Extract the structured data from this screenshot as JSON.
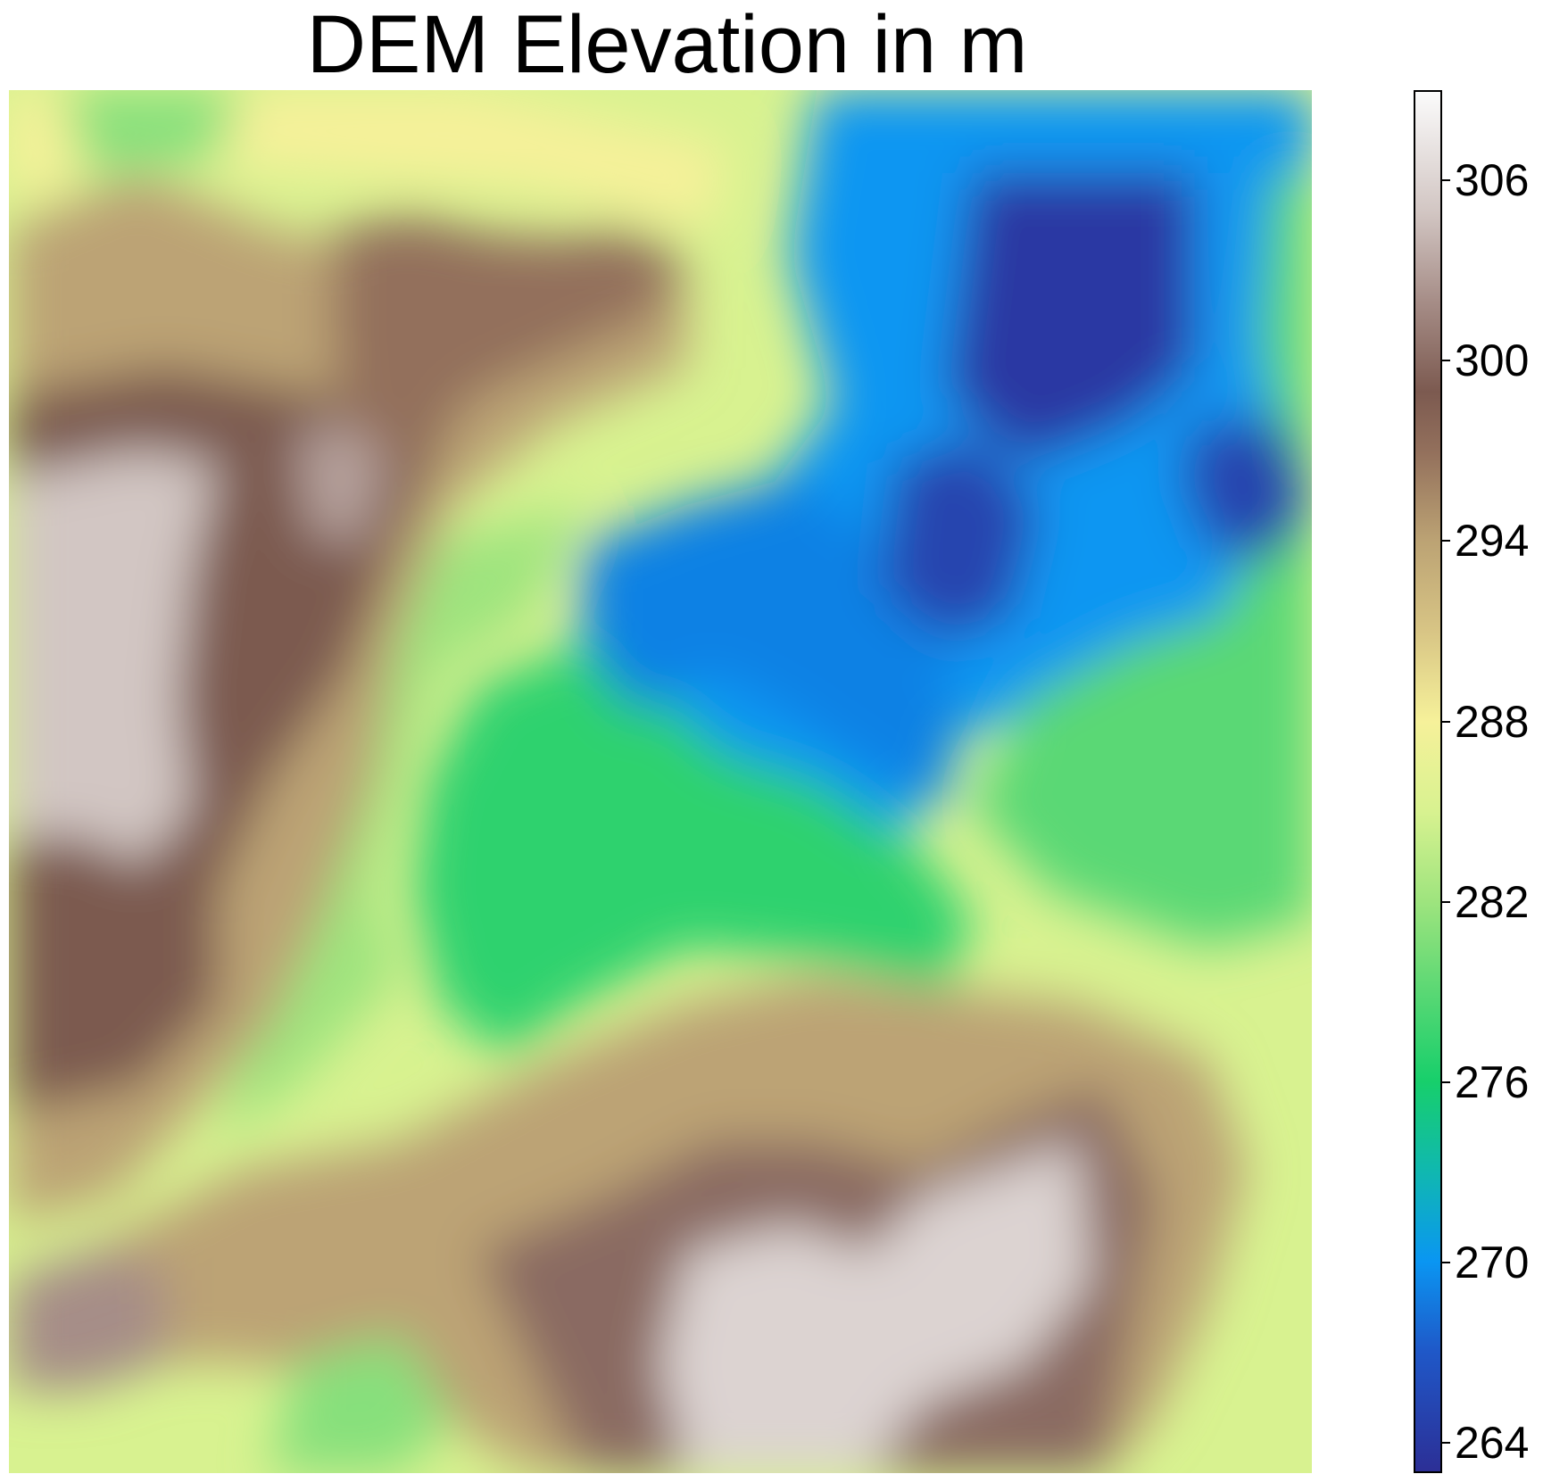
{
  "title": "DEM Elevation in m",
  "colorbar": {
    "min": 263,
    "max": 309,
    "ticks": [
      "264",
      "270",
      "276",
      "282",
      "288",
      "294",
      "300",
      "306"
    ],
    "stops": [
      {
        "value": 263,
        "color": "#2c2f96"
      },
      {
        "value": 267,
        "color": "#1f58c8"
      },
      {
        "value": 270,
        "color": "#0a96f2"
      },
      {
        "value": 273,
        "color": "#10b8b0"
      },
      {
        "value": 276,
        "color": "#17cf6b"
      },
      {
        "value": 279,
        "color": "#5ad874"
      },
      {
        "value": 282,
        "color": "#9ee47e"
      },
      {
        "value": 285,
        "color": "#d8f290"
      },
      {
        "value": 288,
        "color": "#f6f19a"
      },
      {
        "value": 291,
        "color": "#d8c585"
      },
      {
        "value": 294,
        "color": "#bca374"
      },
      {
        "value": 297,
        "color": "#93705c"
      },
      {
        "value": 299,
        "color": "#7c5a50"
      },
      {
        "value": 302,
        "color": "#a68d87"
      },
      {
        "value": 305,
        "color": "#d2c6c3"
      },
      {
        "value": 309,
        "color": "#fbfbfb"
      }
    ]
  },
  "map": {
    "base_elevation": 285,
    "features": [
      {
        "name": "northeast-basin",
        "elevation": 270,
        "points": [
          [
            0.66,
            0.0
          ],
          [
            0.87,
            0.0
          ],
          [
            1.0,
            0.0
          ],
          [
            1.0,
            0.42
          ],
          [
            0.95,
            0.45
          ],
          [
            0.86,
            0.42
          ],
          [
            0.78,
            0.45
          ],
          [
            0.72,
            0.47
          ],
          [
            0.68,
            0.55
          ],
          [
            0.62,
            0.6
          ],
          [
            0.56,
            0.58
          ],
          [
            0.46,
            0.52
          ],
          [
            0.45,
            0.4
          ],
          [
            0.55,
            0.33
          ],
          [
            0.63,
            0.23
          ],
          [
            0.65,
            0.1
          ]
        ]
      },
      {
        "name": "east-green-slope",
        "elevation": 279,
        "points": [
          [
            0.97,
            0.06
          ],
          [
            1.0,
            0.06
          ],
          [
            1.0,
            0.6
          ],
          [
            0.92,
            0.62
          ],
          [
            0.86,
            0.6
          ],
          [
            0.8,
            0.58
          ],
          [
            0.74,
            0.52
          ],
          [
            0.78,
            0.44
          ],
          [
            0.86,
            0.4
          ],
          [
            0.93,
            0.38
          ],
          [
            0.98,
            0.28
          ],
          [
            0.96,
            0.18
          ]
        ]
      },
      {
        "name": "central-valley",
        "elevation": 277,
        "points": [
          [
            0.36,
            0.43
          ],
          [
            0.44,
            0.4
          ],
          [
            0.5,
            0.44
          ],
          [
            0.55,
            0.48
          ],
          [
            0.62,
            0.5
          ],
          [
            0.7,
            0.55
          ],
          [
            0.74,
            0.6
          ],
          [
            0.72,
            0.65
          ],
          [
            0.62,
            0.63
          ],
          [
            0.52,
            0.62
          ],
          [
            0.44,
            0.66
          ],
          [
            0.38,
            0.7
          ],
          [
            0.33,
            0.66
          ],
          [
            0.31,
            0.58
          ],
          [
            0.32,
            0.5
          ]
        ]
      },
      {
        "name": "valley-green-fringe",
        "elevation": 282,
        "points": [
          [
            0.28,
            0.34
          ],
          [
            0.36,
            0.32
          ],
          [
            0.44,
            0.3
          ],
          [
            0.4,
            0.38
          ],
          [
            0.33,
            0.42
          ],
          [
            0.3,
            0.5
          ],
          [
            0.28,
            0.58
          ],
          [
            0.3,
            0.64
          ],
          [
            0.22,
            0.72
          ],
          [
            0.16,
            0.76
          ],
          [
            0.18,
            0.7
          ],
          [
            0.22,
            0.62
          ],
          [
            0.25,
            0.5
          ],
          [
            0.27,
            0.42
          ]
        ]
      },
      {
        "name": "central-blue-depression",
        "elevation": 269,
        "points": [
          [
            0.44,
            0.33
          ],
          [
            0.52,
            0.3
          ],
          [
            0.6,
            0.28
          ],
          [
            0.66,
            0.32
          ],
          [
            0.7,
            0.38
          ],
          [
            0.73,
            0.45
          ],
          [
            0.72,
            0.52
          ],
          [
            0.66,
            0.49
          ],
          [
            0.6,
            0.45
          ],
          [
            0.54,
            0.42
          ],
          [
            0.48,
            0.45
          ],
          [
            0.44,
            0.4
          ]
        ]
      },
      {
        "name": "north-deep-basin",
        "elevation": 264,
        "points": [
          [
            0.74,
            0.06
          ],
          [
            0.91,
            0.06
          ],
          [
            0.91,
            0.2
          ],
          [
            0.86,
            0.24
          ],
          [
            0.78,
            0.27
          ],
          [
            0.72,
            0.22
          ],
          [
            0.73,
            0.14
          ]
        ]
      },
      {
        "name": "central-deep-pit",
        "elevation": 265,
        "points": [
          [
            0.68,
            0.27
          ],
          [
            0.74,
            0.25
          ],
          [
            0.79,
            0.3
          ],
          [
            0.77,
            0.38
          ],
          [
            0.72,
            0.4
          ],
          [
            0.67,
            0.36
          ]
        ]
      },
      {
        "name": "east-deep-pit",
        "elevation": 265,
        "points": [
          [
            0.91,
            0.24
          ],
          [
            0.98,
            0.24
          ],
          [
            1.0,
            0.3
          ],
          [
            0.97,
            0.34
          ],
          [
            0.92,
            0.33
          ],
          [
            0.9,
            0.28
          ]
        ]
      },
      {
        "name": "north-channel",
        "elevation": 270,
        "points": [
          [
            0.62,
            0.0
          ],
          [
            0.72,
            0.0
          ],
          [
            0.73,
            0.08
          ],
          [
            0.68,
            0.18
          ],
          [
            0.63,
            0.22
          ],
          [
            0.6,
            0.12
          ]
        ]
      },
      {
        "name": "western-plateau",
        "elevation": 294,
        "points": [
          [
            0.0,
            0.1
          ],
          [
            0.1,
            0.06
          ],
          [
            0.2,
            0.1
          ],
          [
            0.3,
            0.12
          ],
          [
            0.4,
            0.1
          ],
          [
            0.52,
            0.14
          ],
          [
            0.52,
            0.2
          ],
          [
            0.42,
            0.24
          ],
          [
            0.34,
            0.3
          ],
          [
            0.3,
            0.4
          ],
          [
            0.28,
            0.5
          ],
          [
            0.24,
            0.6
          ],
          [
            0.2,
            0.68
          ],
          [
            0.14,
            0.74
          ],
          [
            0.08,
            0.8
          ],
          [
            0.0,
            0.82
          ]
        ]
      },
      {
        "name": "west-highland",
        "elevation": 299,
        "points": [
          [
            0.0,
            0.22
          ],
          [
            0.12,
            0.2
          ],
          [
            0.24,
            0.22
          ],
          [
            0.34,
            0.24
          ],
          [
            0.3,
            0.32
          ],
          [
            0.26,
            0.42
          ],
          [
            0.2,
            0.5
          ],
          [
            0.16,
            0.58
          ],
          [
            0.16,
            0.66
          ],
          [
            0.1,
            0.72
          ],
          [
            0.0,
            0.74
          ]
        ]
      },
      {
        "name": "west-summit",
        "elevation": 305,
        "points": [
          [
            0.0,
            0.28
          ],
          [
            0.1,
            0.26
          ],
          [
            0.16,
            0.27
          ],
          [
            0.14,
            0.35
          ],
          [
            0.13,
            0.44
          ],
          [
            0.14,
            0.52
          ],
          [
            0.1,
            0.56
          ],
          [
            0.06,
            0.54
          ],
          [
            0.0,
            0.54
          ]
        ]
      },
      {
        "name": "northwest-ridge",
        "elevation": 297,
        "points": [
          [
            0.25,
            0.1
          ],
          [
            0.31,
            0.09
          ],
          [
            0.4,
            0.11
          ],
          [
            0.47,
            0.1
          ],
          [
            0.52,
            0.12
          ],
          [
            0.5,
            0.16
          ],
          [
            0.43,
            0.19
          ],
          [
            0.36,
            0.22
          ],
          [
            0.3,
            0.28
          ],
          [
            0.26,
            0.26
          ],
          [
            0.25,
            0.18
          ]
        ]
      },
      {
        "name": "upper-west-pit",
        "elevation": 303,
        "points": [
          [
            0.22,
            0.25
          ],
          [
            0.26,
            0.24
          ],
          [
            0.29,
            0.27
          ],
          [
            0.27,
            0.33
          ],
          [
            0.23,
            0.32
          ]
        ]
      },
      {
        "name": "northwest-yellow-band",
        "elevation": 288,
        "points": [
          [
            0.0,
            0.0
          ],
          [
            0.2,
            0.0
          ],
          [
            0.35,
            0.0
          ],
          [
            0.45,
            0.02
          ],
          [
            0.55,
            0.04
          ],
          [
            0.54,
            0.1
          ],
          [
            0.4,
            0.07
          ],
          [
            0.25,
            0.06
          ],
          [
            0.1,
            0.05
          ],
          [
            0.0,
            0.08
          ]
        ]
      },
      {
        "name": "north-green-strip",
        "elevation": 281,
        "points": [
          [
            0.04,
            0.0
          ],
          [
            0.18,
            0.0
          ],
          [
            0.16,
            0.05
          ],
          [
            0.06,
            0.06
          ]
        ]
      },
      {
        "name": "southern-ridge",
        "elevation": 294,
        "points": [
          [
            0.06,
            0.84
          ],
          [
            0.18,
            0.78
          ],
          [
            0.3,
            0.76
          ],
          [
            0.42,
            0.7
          ],
          [
            0.52,
            0.66
          ],
          [
            0.62,
            0.64
          ],
          [
            0.72,
            0.65
          ],
          [
            0.82,
            0.66
          ],
          [
            0.92,
            0.7
          ],
          [
            0.95,
            0.78
          ],
          [
            0.92,
            0.88
          ],
          [
            0.88,
            0.96
          ],
          [
            0.84,
            1.0
          ],
          [
            0.4,
            1.0
          ],
          [
            0.3,
            0.94
          ],
          [
            0.18,
            0.92
          ],
          [
            0.08,
            0.92
          ]
        ]
      },
      {
        "name": "south-highland",
        "elevation": 300,
        "points": [
          [
            0.36,
            0.84
          ],
          [
            0.46,
            0.8
          ],
          [
            0.54,
            0.76
          ],
          [
            0.62,
            0.76
          ],
          [
            0.7,
            0.78
          ],
          [
            0.78,
            0.74
          ],
          [
            0.84,
            0.72
          ],
          [
            0.88,
            0.8
          ],
          [
            0.86,
            0.9
          ],
          [
            0.84,
            1.0
          ],
          [
            0.44,
            1.0
          ],
          [
            0.4,
            0.92
          ]
        ]
      },
      {
        "name": "south-summit",
        "elevation": 306,
        "points": [
          [
            0.52,
            0.84
          ],
          [
            0.6,
            0.82
          ],
          [
            0.66,
            0.84
          ],
          [
            0.7,
            0.8
          ],
          [
            0.76,
            0.78
          ],
          [
            0.82,
            0.76
          ],
          [
            0.83,
            0.86
          ],
          [
            0.78,
            0.92
          ],
          [
            0.7,
            0.95
          ],
          [
            0.66,
            1.0
          ],
          [
            0.52,
            1.0
          ],
          [
            0.5,
            0.92
          ]
        ]
      },
      {
        "name": "southwest-summit",
        "elevation": 302,
        "points": [
          [
            0.0,
            0.86
          ],
          [
            0.06,
            0.84
          ],
          [
            0.12,
            0.85
          ],
          [
            0.12,
            0.92
          ],
          [
            0.06,
            0.94
          ],
          [
            0.0,
            0.94
          ]
        ]
      },
      {
        "name": "south-green-patch",
        "elevation": 281,
        "points": [
          [
            0.22,
            0.92
          ],
          [
            0.3,
            0.9
          ],
          [
            0.34,
            0.96
          ],
          [
            0.3,
            1.0
          ],
          [
            0.2,
            1.0
          ]
        ]
      }
    ]
  }
}
